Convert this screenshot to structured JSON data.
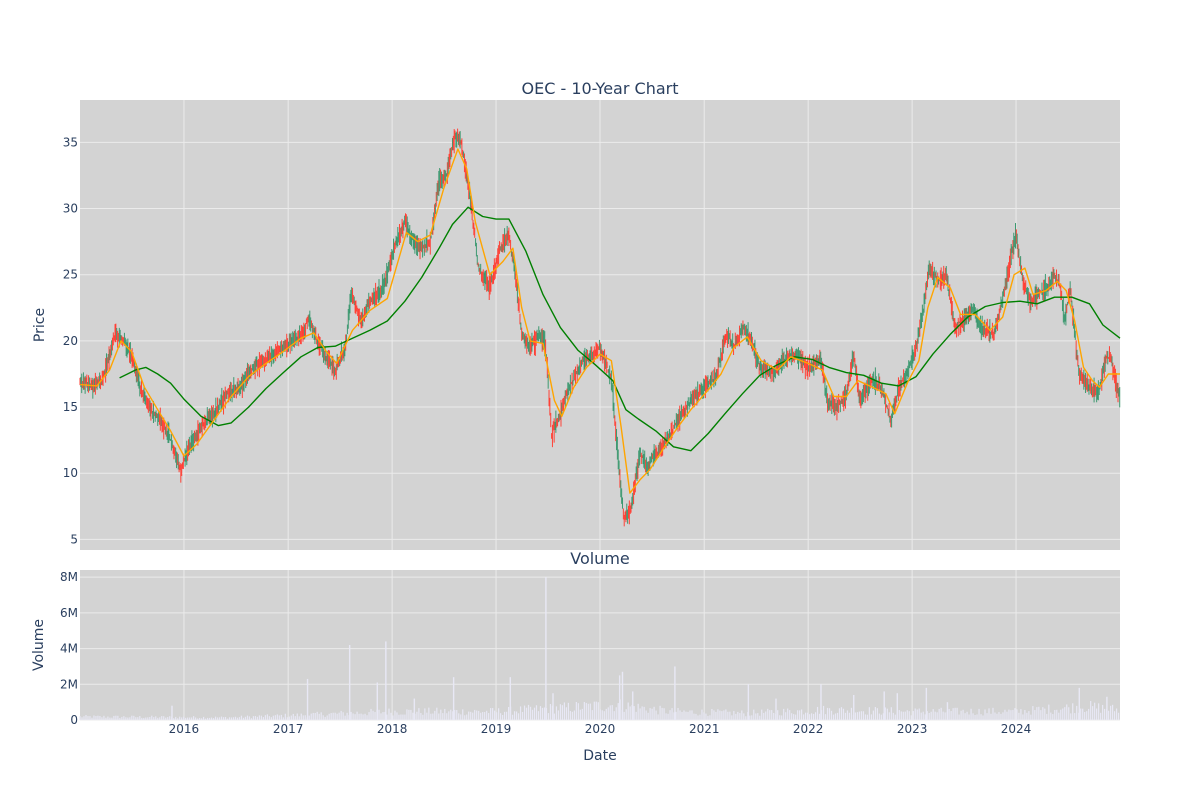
{
  "chart_data": [
    {
      "type": "candlestick",
      "title": "OEC - 10-Year Chart",
      "ylabel": "Price",
      "ylim": [
        4.2,
        38.2
      ],
      "yticks": [
        5,
        10,
        15,
        20,
        25,
        30,
        35
      ],
      "xlim": [
        "2015-01-01",
        "2024-12-31"
      ],
      "grid": true,
      "legend": "none",
      "colors": {
        "up": "#3d9970",
        "down": "#ff4136",
        "ma_short": "#ffa500",
        "ma_long": "#008000",
        "plot_bg": "#d3d3d3",
        "grid": "#ebebeb"
      },
      "price_path": [
        [
          "2015-01-02",
          16.8
        ],
        [
          "2015-02-15",
          16.6
        ],
        [
          "2015-03-15",
          16.9
        ],
        [
          "2015-04-10",
          18.5
        ],
        [
          "2015-05-05",
          20.5
        ],
        [
          "2015-06-01",
          20.1
        ],
        [
          "2015-07-01",
          19.0
        ],
        [
          "2015-08-01",
          16.5
        ],
        [
          "2015-09-01",
          15.0
        ],
        [
          "2015-10-10",
          14.0
        ],
        [
          "2015-11-15",
          12.5
        ],
        [
          "2015-12-20",
          10.2
        ],
        [
          "2016-01-20",
          12.0
        ],
        [
          "2016-03-01",
          13.5
        ],
        [
          "2016-04-15",
          14.5
        ],
        [
          "2016-06-01",
          16.0
        ],
        [
          "2016-07-15",
          16.5
        ],
        [
          "2016-09-01",
          18.0
        ],
        [
          "2016-11-01",
          18.8
        ],
        [
          "2016-12-15",
          19.5
        ],
        [
          "2017-02-15",
          20.5
        ],
        [
          "2017-03-15",
          21.5
        ],
        [
          "2017-04-15",
          20.0
        ],
        [
          "2017-05-20",
          18.5
        ],
        [
          "2017-06-15",
          17.8
        ],
        [
          "2017-07-20",
          19.5
        ],
        [
          "2017-08-10",
          23.5
        ],
        [
          "2017-09-15",
          21.5
        ],
        [
          "2017-10-15",
          23.0
        ],
        [
          "2017-12-01",
          24.0
        ],
        [
          "2018-01-15",
          27.5
        ],
        [
          "2018-02-15",
          29.0
        ],
        [
          "2018-03-15",
          27.5
        ],
        [
          "2018-04-15",
          27.0
        ],
        [
          "2018-05-15",
          27.5
        ],
        [
          "2018-06-15",
          32.0
        ],
        [
          "2018-07-10",
          32.5
        ],
        [
          "2018-08-10",
          35.5
        ],
        [
          "2018-09-01",
          35.0
        ],
        [
          "2018-10-01",
          31.0
        ],
        [
          "2018-11-01",
          25.5
        ],
        [
          "2018-12-10",
          24.0
        ],
        [
          "2019-01-15",
          27.0
        ],
        [
          "2019-02-15",
          28.0
        ],
        [
          "2019-03-10",
          25.0
        ],
        [
          "2019-04-01",
          20.5
        ],
        [
          "2019-05-01",
          19.5
        ],
        [
          "2019-06-01",
          20.5
        ],
        [
          "2019-06-25",
          19.5
        ],
        [
          "2019-07-15",
          13.0
        ],
        [
          "2019-08-15",
          14.5
        ],
        [
          "2019-09-15",
          16.5
        ],
        [
          "2019-11-01",
          18.5
        ],
        [
          "2020-01-01",
          19.5
        ],
        [
          "2020-02-10",
          17.0
        ],
        [
          "2020-03-10",
          10.0
        ],
        [
          "2020-03-25",
          6.5
        ],
        [
          "2020-04-20",
          7.5
        ],
        [
          "2020-05-20",
          11.5
        ],
        [
          "2020-06-15",
          10.5
        ],
        [
          "2020-07-15",
          11.5
        ],
        [
          "2020-08-20",
          12.5
        ],
        [
          "2020-10-01",
          14.0
        ],
        [
          "2020-11-15",
          15.5
        ],
        [
          "2021-01-05",
          16.5
        ],
        [
          "2021-02-15",
          17.5
        ],
        [
          "2021-03-20",
          20.5
        ],
        [
          "2021-04-15",
          19.5
        ],
        [
          "2021-05-20",
          21.0
        ],
        [
          "2021-06-15",
          20.0
        ],
        [
          "2021-07-15",
          18.0
        ],
        [
          "2021-09-01",
          17.5
        ],
        [
          "2021-10-01",
          18.5
        ],
        [
          "2021-11-15",
          19.0
        ],
        [
          "2022-01-01",
          18.0
        ],
        [
          "2022-02-15",
          18.5
        ],
        [
          "2022-03-10",
          15.5
        ],
        [
          "2022-04-15",
          15.0
        ],
        [
          "2022-05-15",
          16.0
        ],
        [
          "2022-06-10",
          19.0
        ],
        [
          "2022-07-01",
          15.5
        ],
        [
          "2022-08-15",
          17.0
        ],
        [
          "2022-09-15",
          16.5
        ],
        [
          "2022-10-20",
          14.0
        ],
        [
          "2022-11-15",
          16.5
        ],
        [
          "2022-12-15",
          17.5
        ],
        [
          "2023-01-15",
          19.5
        ],
        [
          "2023-02-10",
          22.5
        ],
        [
          "2023-03-01",
          25.5
        ],
        [
          "2023-04-01",
          24.5
        ],
        [
          "2023-05-01",
          25.0
        ],
        [
          "2023-06-01",
          21.0
        ],
        [
          "2023-07-01",
          21.5
        ],
        [
          "2023-08-01",
          22.5
        ],
        [
          "2023-09-01",
          21.0
        ],
        [
          "2023-10-15",
          20.5
        ],
        [
          "2023-11-15",
          23.0
        ],
        [
          "2023-12-15",
          26.5
        ],
        [
          "2024-01-01",
          28.0
        ],
        [
          "2024-01-25",
          24.5
        ],
        [
          "2024-02-20",
          23.0
        ],
        [
          "2024-03-20",
          23.5
        ],
        [
          "2024-04-20",
          24.0
        ],
        [
          "2024-05-15",
          25.0
        ],
        [
          "2024-06-01",
          24.5
        ],
        [
          "2024-06-20",
          21.5
        ],
        [
          "2024-07-10",
          24.0
        ],
        [
          "2024-07-25",
          20.5
        ],
        [
          "2024-08-10",
          17.5
        ],
        [
          "2024-09-15",
          16.5
        ],
        [
          "2024-10-15",
          16.0
        ],
        [
          "2024-11-10",
          18.5
        ],
        [
          "2024-11-25",
          19.0
        ],
        [
          "2024-12-31",
          15.5
        ]
      ],
      "ma_short_path": [
        [
          "2015-01-02",
          16.7
        ],
        [
          "2015-03-01",
          16.6
        ],
        [
          "2015-04-15",
          17.8
        ],
        [
          "2015-05-25",
          20.0
        ],
        [
          "2015-07-01",
          19.2
        ],
        [
          "2015-08-15",
          16.5
        ],
        [
          "2015-10-01",
          14.8
        ],
        [
          "2015-11-15",
          13.2
        ],
        [
          "2016-01-01",
          11.3
        ],
        [
          "2016-02-15",
          12.2
        ],
        [
          "2016-04-15",
          14.0
        ],
        [
          "2016-06-15",
          15.8
        ],
        [
          "2016-08-15",
          17.3
        ],
        [
          "2016-10-15",
          18.3
        ],
        [
          "2016-12-15",
          19.2
        ],
        [
          "2017-02-15",
          20.2
        ],
        [
          "2017-04-01",
          20.6
        ],
        [
          "2017-05-15",
          19.2
        ],
        [
          "2017-06-20",
          18.3
        ],
        [
          "2017-08-15",
          20.8
        ],
        [
          "2017-10-15",
          22.3
        ],
        [
          "2017-12-15",
          23.2
        ],
        [
          "2018-01-15",
          25.5
        ],
        [
          "2018-02-20",
          28.2
        ],
        [
          "2018-04-01",
          27.5
        ],
        [
          "2018-05-15",
          28.0
        ],
        [
          "2018-07-01",
          31.5
        ],
        [
          "2018-08-20",
          34.5
        ],
        [
          "2018-09-20",
          33.0
        ],
        [
          "2018-10-20",
          29.0
        ],
        [
          "2018-12-10",
          25.0
        ],
        [
          "2019-01-25",
          26.0
        ],
        [
          "2019-03-01",
          27.0
        ],
        [
          "2019-04-01",
          22.5
        ],
        [
          "2019-05-01",
          20.0
        ],
        [
          "2019-06-15",
          19.8
        ],
        [
          "2019-07-25",
          15.5
        ],
        [
          "2019-08-20",
          14.3
        ],
        [
          "2019-10-01",
          16.5
        ],
        [
          "2019-11-15",
          18.0
        ],
        [
          "2020-01-01",
          19.0
        ],
        [
          "2020-02-10",
          18.5
        ],
        [
          "2020-03-15",
          13.5
        ],
        [
          "2020-04-15",
          8.5
        ],
        [
          "2020-05-20",
          9.5
        ],
        [
          "2020-06-25",
          10.3
        ],
        [
          "2020-08-15",
          12.0
        ],
        [
          "2020-10-01",
          13.5
        ],
        [
          "2020-11-15",
          14.8
        ],
        [
          "2021-01-15",
          16.3
        ],
        [
          "2021-03-01",
          17.5
        ],
        [
          "2021-04-15",
          19.5
        ],
        [
          "2021-06-01",
          20.3
        ],
        [
          "2021-07-20",
          18.5
        ],
        [
          "2021-09-15",
          17.8
        ],
        [
          "2021-11-01",
          18.8
        ],
        [
          "2022-01-01",
          18.3
        ],
        [
          "2022-02-20",
          17.8
        ],
        [
          "2022-04-01",
          15.8
        ],
        [
          "2022-05-15",
          15.8
        ],
        [
          "2022-06-25",
          17.0
        ],
        [
          "2022-08-15",
          16.5
        ],
        [
          "2022-10-01",
          16.0
        ],
        [
          "2022-11-01",
          14.5
        ],
        [
          "2022-12-15",
          16.8
        ],
        [
          "2023-01-25",
          18.5
        ],
        [
          "2023-02-25",
          22.5
        ],
        [
          "2023-04-01",
          24.8
        ],
        [
          "2023-05-15",
          24.0
        ],
        [
          "2023-06-20",
          22.0
        ],
        [
          "2023-08-10",
          22.0
        ],
        [
          "2023-10-01",
          20.8
        ],
        [
          "2023-11-15",
          21.8
        ],
        [
          "2023-12-25",
          25.0
        ],
        [
          "2024-02-01",
          25.5
        ],
        [
          "2024-03-01",
          23.5
        ],
        [
          "2024-04-15",
          23.8
        ],
        [
          "2024-05-25",
          24.5
        ],
        [
          "2024-06-25",
          23.8
        ],
        [
          "2024-07-25",
          21.5
        ],
        [
          "2024-08-25",
          18.0
        ],
        [
          "2024-09-25",
          17.0
        ],
        [
          "2024-10-20",
          16.5
        ],
        [
          "2024-11-20",
          17.5
        ],
        [
          "2024-12-31",
          17.5
        ]
      ],
      "ma_long_path": [
        [
          "2015-05-20",
          17.2
        ],
        [
          "2015-07-15",
          17.8
        ],
        [
          "2015-08-20",
          18.0
        ],
        [
          "2015-10-01",
          17.5
        ],
        [
          "2015-11-15",
          16.8
        ],
        [
          "2016-01-01",
          15.6
        ],
        [
          "2016-03-01",
          14.3
        ],
        [
          "2016-05-01",
          13.6
        ],
        [
          "2016-06-15",
          13.8
        ],
        [
          "2016-08-15",
          15.0
        ],
        [
          "2016-10-15",
          16.4
        ],
        [
          "2016-12-15",
          17.6
        ],
        [
          "2017-02-15",
          18.8
        ],
        [
          "2017-04-15",
          19.5
        ],
        [
          "2017-06-15",
          19.6
        ],
        [
          "2017-08-15",
          20.2
        ],
        [
          "2017-10-15",
          20.8
        ],
        [
          "2017-12-15",
          21.5
        ],
        [
          "2018-02-15",
          23.0
        ],
        [
          "2018-04-15",
          24.8
        ],
        [
          "2018-06-15",
          27.0
        ],
        [
          "2018-08-01",
          28.8
        ],
        [
          "2018-09-25",
          30.1
        ],
        [
          "2018-11-15",
          29.4
        ],
        [
          "2019-01-01",
          29.2
        ],
        [
          "2019-02-15",
          29.2
        ],
        [
          "2019-04-15",
          26.8
        ],
        [
          "2019-06-15",
          23.5
        ],
        [
          "2019-08-15",
          21.0
        ],
        [
          "2019-10-15",
          19.3
        ],
        [
          "2019-12-15",
          18.2
        ],
        [
          "2020-02-15",
          17.0
        ],
        [
          "2020-04-01",
          14.8
        ],
        [
          "2020-05-15",
          14.1
        ],
        [
          "2020-07-15",
          13.2
        ],
        [
          "2020-09-15",
          12.0
        ],
        [
          "2020-11-15",
          11.7
        ],
        [
          "2021-01-15",
          13.0
        ],
        [
          "2021-03-15",
          14.5
        ],
        [
          "2021-05-15",
          16.0
        ],
        [
          "2021-07-15",
          17.4
        ],
        [
          "2021-09-15",
          18.2
        ],
        [
          "2021-11-15",
          18.8
        ],
        [
          "2022-01-15",
          18.6
        ],
        [
          "2022-03-15",
          18.0
        ],
        [
          "2022-05-15",
          17.6
        ],
        [
          "2022-07-15",
          17.4
        ],
        [
          "2022-09-15",
          16.8
        ],
        [
          "2022-11-15",
          16.6
        ],
        [
          "2023-01-15",
          17.3
        ],
        [
          "2023-03-15",
          19.0
        ],
        [
          "2023-05-15",
          20.5
        ],
        [
          "2023-07-15",
          21.8
        ],
        [
          "2023-09-15",
          22.6
        ],
        [
          "2023-11-15",
          22.9
        ],
        [
          "2024-01-15",
          23.0
        ],
        [
          "2024-03-15",
          22.8
        ],
        [
          "2024-05-15",
          23.3
        ],
        [
          "2024-07-15",
          23.3
        ],
        [
          "2024-09-15",
          22.8
        ],
        [
          "2024-11-01",
          21.2
        ],
        [
          "2024-12-31",
          20.2
        ]
      ]
    },
    {
      "type": "bar",
      "title": "Volume",
      "xlabel": "Date",
      "ylabel": "Volume",
      "ylim": [
        0,
        8400000
      ],
      "yticks": [
        0,
        2000000,
        4000000,
        6000000,
        8000000
      ],
      "ytick_labels": [
        "0",
        "2M",
        "4M",
        "6M",
        "8M"
      ],
      "xticks": [
        "2016-01-01",
        "2017-01-01",
        "2018-01-01",
        "2019-01-01",
        "2020-01-01",
        "2021-01-01",
        "2022-01-01",
        "2023-01-01",
        "2024-01-01"
      ],
      "xtick_labels": [
        "2016",
        "2017",
        "2018",
        "2019",
        "2020",
        "2021",
        "2022",
        "2023",
        "2024"
      ],
      "bar_color": "#e8e8f5",
      "baseline_levels": [
        [
          "2015-01-01",
          200000
        ],
        [
          "2016-06-01",
          150000
        ],
        [
          "2017-03-01",
          300000
        ],
        [
          "2018-01-01",
          500000
        ],
        [
          "2019-01-01",
          500000
        ],
        [
          "2020-03-01",
          900000
        ],
        [
          "2020-09-01",
          500000
        ],
        [
          "2021-06-01",
          400000
        ],
        [
          "2022-03-01",
          600000
        ],
        [
          "2023-01-01",
          500000
        ],
        [
          "2024-01-01",
          500000
        ],
        [
          "2024-09-01",
          800000
        ],
        [
          "2024-12-31",
          600000
        ]
      ],
      "volume_spikes": [
        [
          "2015-11-20",
          800000
        ],
        [
          "2017-03-10",
          2300000
        ],
        [
          "2017-08-05",
          4200000
        ],
        [
          "2017-11-10",
          2100000
        ],
        [
          "2017-12-10",
          4400000
        ],
        [
          "2018-03-20",
          1200000
        ],
        [
          "2018-08-05",
          2400000
        ],
        [
          "2019-02-20",
          2400000
        ],
        [
          "2019-06-25",
          8000000
        ],
        [
          "2019-07-20",
          1500000
        ],
        [
          "2020-03-10",
          2500000
        ],
        [
          "2020-03-20",
          2700000
        ],
        [
          "2020-04-25",
          1600000
        ],
        [
          "2020-09-20",
          3000000
        ],
        [
          "2021-06-05",
          2000000
        ],
        [
          "2021-09-10",
          1200000
        ],
        [
          "2022-02-15",
          2000000
        ],
        [
          "2022-06-10",
          1400000
        ],
        [
          "2022-09-25",
          1600000
        ],
        [
          "2022-11-10",
          1500000
        ],
        [
          "2023-02-20",
          1800000
        ],
        [
          "2023-05-05",
          1000000
        ],
        [
          "2024-08-10",
          1800000
        ],
        [
          "2024-11-15",
          1300000
        ]
      ]
    }
  ]
}
